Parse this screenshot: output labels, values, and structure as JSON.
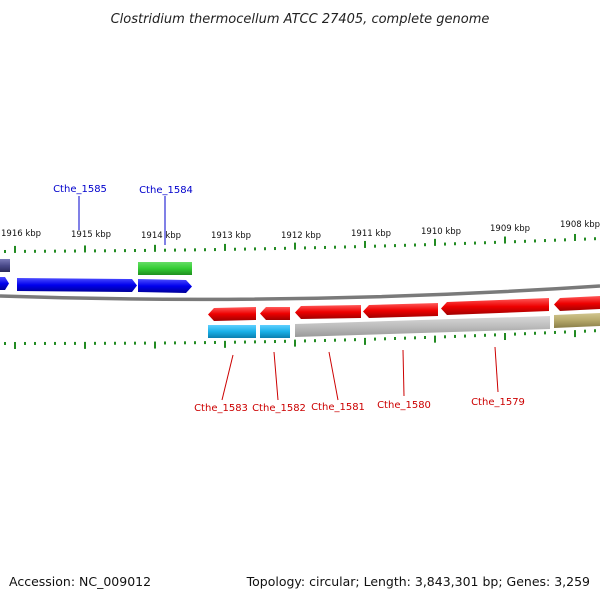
{
  "title": "Clostridium thermocellum ATCC 27405, complete genome",
  "footer": {
    "accession": "Accession: NC_009012",
    "summary": "Topology: circular; Length: 3,843,301 bp; Genes: 3,259"
  },
  "scale_labels": [
    "1916 kbp",
    "1915 kbp",
    "1914 kbp",
    "1913 kbp",
    "1912 kbp",
    "1911 kbp",
    "1910 kbp",
    "1909 kbp",
    "1908 kbp"
  ],
  "genes_top": [
    {
      "label": "Cthe_1585",
      "color": "#0000cc"
    },
    {
      "label": "Cthe_1584",
      "color": "#0000cc"
    }
  ],
  "genes_bottom": [
    {
      "label": "Cthe_1583",
      "color": "#cc0000"
    },
    {
      "label": "Cthe_1582",
      "color": "#cc0000"
    },
    {
      "label": "Cthe_1581",
      "color": "#cc0000"
    },
    {
      "label": "Cthe_1580",
      "color": "#cc0000"
    },
    {
      "label": "Cthe_1579",
      "color": "#cc0000"
    }
  ],
  "colors": {
    "forward_cds": "#0000ee",
    "reverse_cds": "#ee0000",
    "backbone": "#808080",
    "ticks": "#228b22",
    "green_feature": "#33cc33",
    "cyan_feature": "#1ab0e8",
    "grey_feature": "#b8b8b8",
    "olive_feature": "#b5a86a",
    "purple_feature": "#4a4a8a"
  }
}
